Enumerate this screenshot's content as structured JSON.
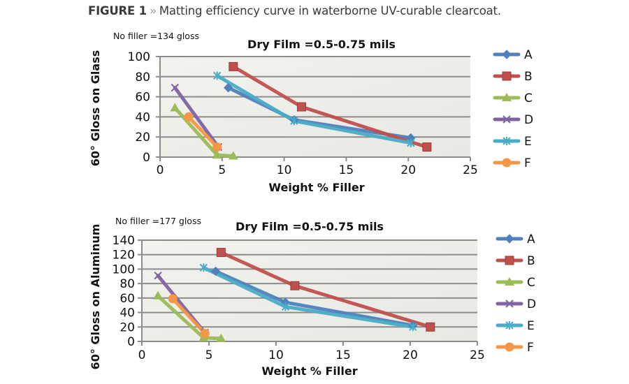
{
  "caption": {
    "figure_label": "FIGURE 1",
    "separator": "»",
    "text": "Matting efficiency curve in waterborne UV-curable clearcoat."
  },
  "colors": {
    "A": "#4f81bd",
    "B": "#c0504d",
    "C": "#9bbb59",
    "D": "#8064a2",
    "E": "#4bacc6",
    "F": "#f79646",
    "plot_bg": "#eeeee9",
    "grid": "#8c8c8c"
  },
  "chart_data": [
    {
      "type": "line",
      "title": "Dry Film =0.5-0.75 mils",
      "note": "No filler =134 gloss",
      "xlabel": "Weight % Filler",
      "ylabel": "60° Gloss on Glass",
      "xlim": [
        0,
        25
      ],
      "ylim": [
        0,
        100
      ],
      "xticks": [
        "0",
        "5",
        "10",
        "15",
        "20",
        "25"
      ],
      "yticks": [
        "0",
        "20",
        "40",
        "60",
        "80",
        "100"
      ],
      "grid": true,
      "legend_position": "right",
      "series": [
        {
          "name": "A",
          "marker": "diamond",
          "x": [
            5.5,
            10.8,
            20.2
          ],
          "y": [
            69,
            37,
            19
          ]
        },
        {
          "name": "B",
          "marker": "square",
          "x": [
            5.9,
            11.4,
            21.5
          ],
          "y": [
            90,
            50,
            10
          ]
        },
        {
          "name": "C",
          "marker": "triangle",
          "x": [
            1.2,
            4.6,
            5.9
          ],
          "y": [
            49,
            2,
            1
          ]
        },
        {
          "name": "D",
          "marker": "x",
          "x": [
            1.2,
            4.7
          ],
          "y": [
            69,
            10
          ]
        },
        {
          "name": "E",
          "marker": "star",
          "x": [
            4.6,
            10.8,
            20.2
          ],
          "y": [
            81,
            36,
            14
          ]
        },
        {
          "name": "F",
          "marker": "circle",
          "x": [
            2.3,
            4.6
          ],
          "y": [
            40,
            10
          ]
        }
      ]
    },
    {
      "type": "line",
      "title": "Dry Film =0.5-0.75 mils",
      "note": "No filler =177 gloss",
      "xlabel": "Weight % Filler",
      "ylabel": "60° Gloss on Aluminum",
      "xlim": [
        0,
        25
      ],
      "ylim": [
        0,
        140
      ],
      "xticks": [
        "0",
        "5",
        "10",
        "15",
        "20",
        "25"
      ],
      "yticks": [
        "0",
        "20",
        "40",
        "60",
        "80",
        "100",
        "120",
        "140"
      ],
      "grid": true,
      "legend_position": "right",
      "series": [
        {
          "name": "A",
          "marker": "diamond",
          "x": [
            5.5,
            10.7,
            20.2
          ],
          "y": [
            97,
            54,
            22
          ]
        },
        {
          "name": "B",
          "marker": "square",
          "x": [
            5.9,
            11.4,
            21.5
          ],
          "y": [
            123,
            77,
            20
          ]
        },
        {
          "name": "C",
          "marker": "triangle",
          "x": [
            1.2,
            4.6,
            5.9
          ],
          "y": [
            63,
            5,
            4
          ]
        },
        {
          "name": "D",
          "marker": "x",
          "x": [
            1.2,
            4.7
          ],
          "y": [
            91,
            12
          ]
        },
        {
          "name": "E",
          "marker": "star",
          "x": [
            4.6,
            10.7,
            20.2
          ],
          "y": [
            102,
            48,
            20
          ]
        },
        {
          "name": "F",
          "marker": "circle",
          "x": [
            2.3,
            4.7
          ],
          "y": [
            59,
            11
          ]
        }
      ]
    }
  ]
}
